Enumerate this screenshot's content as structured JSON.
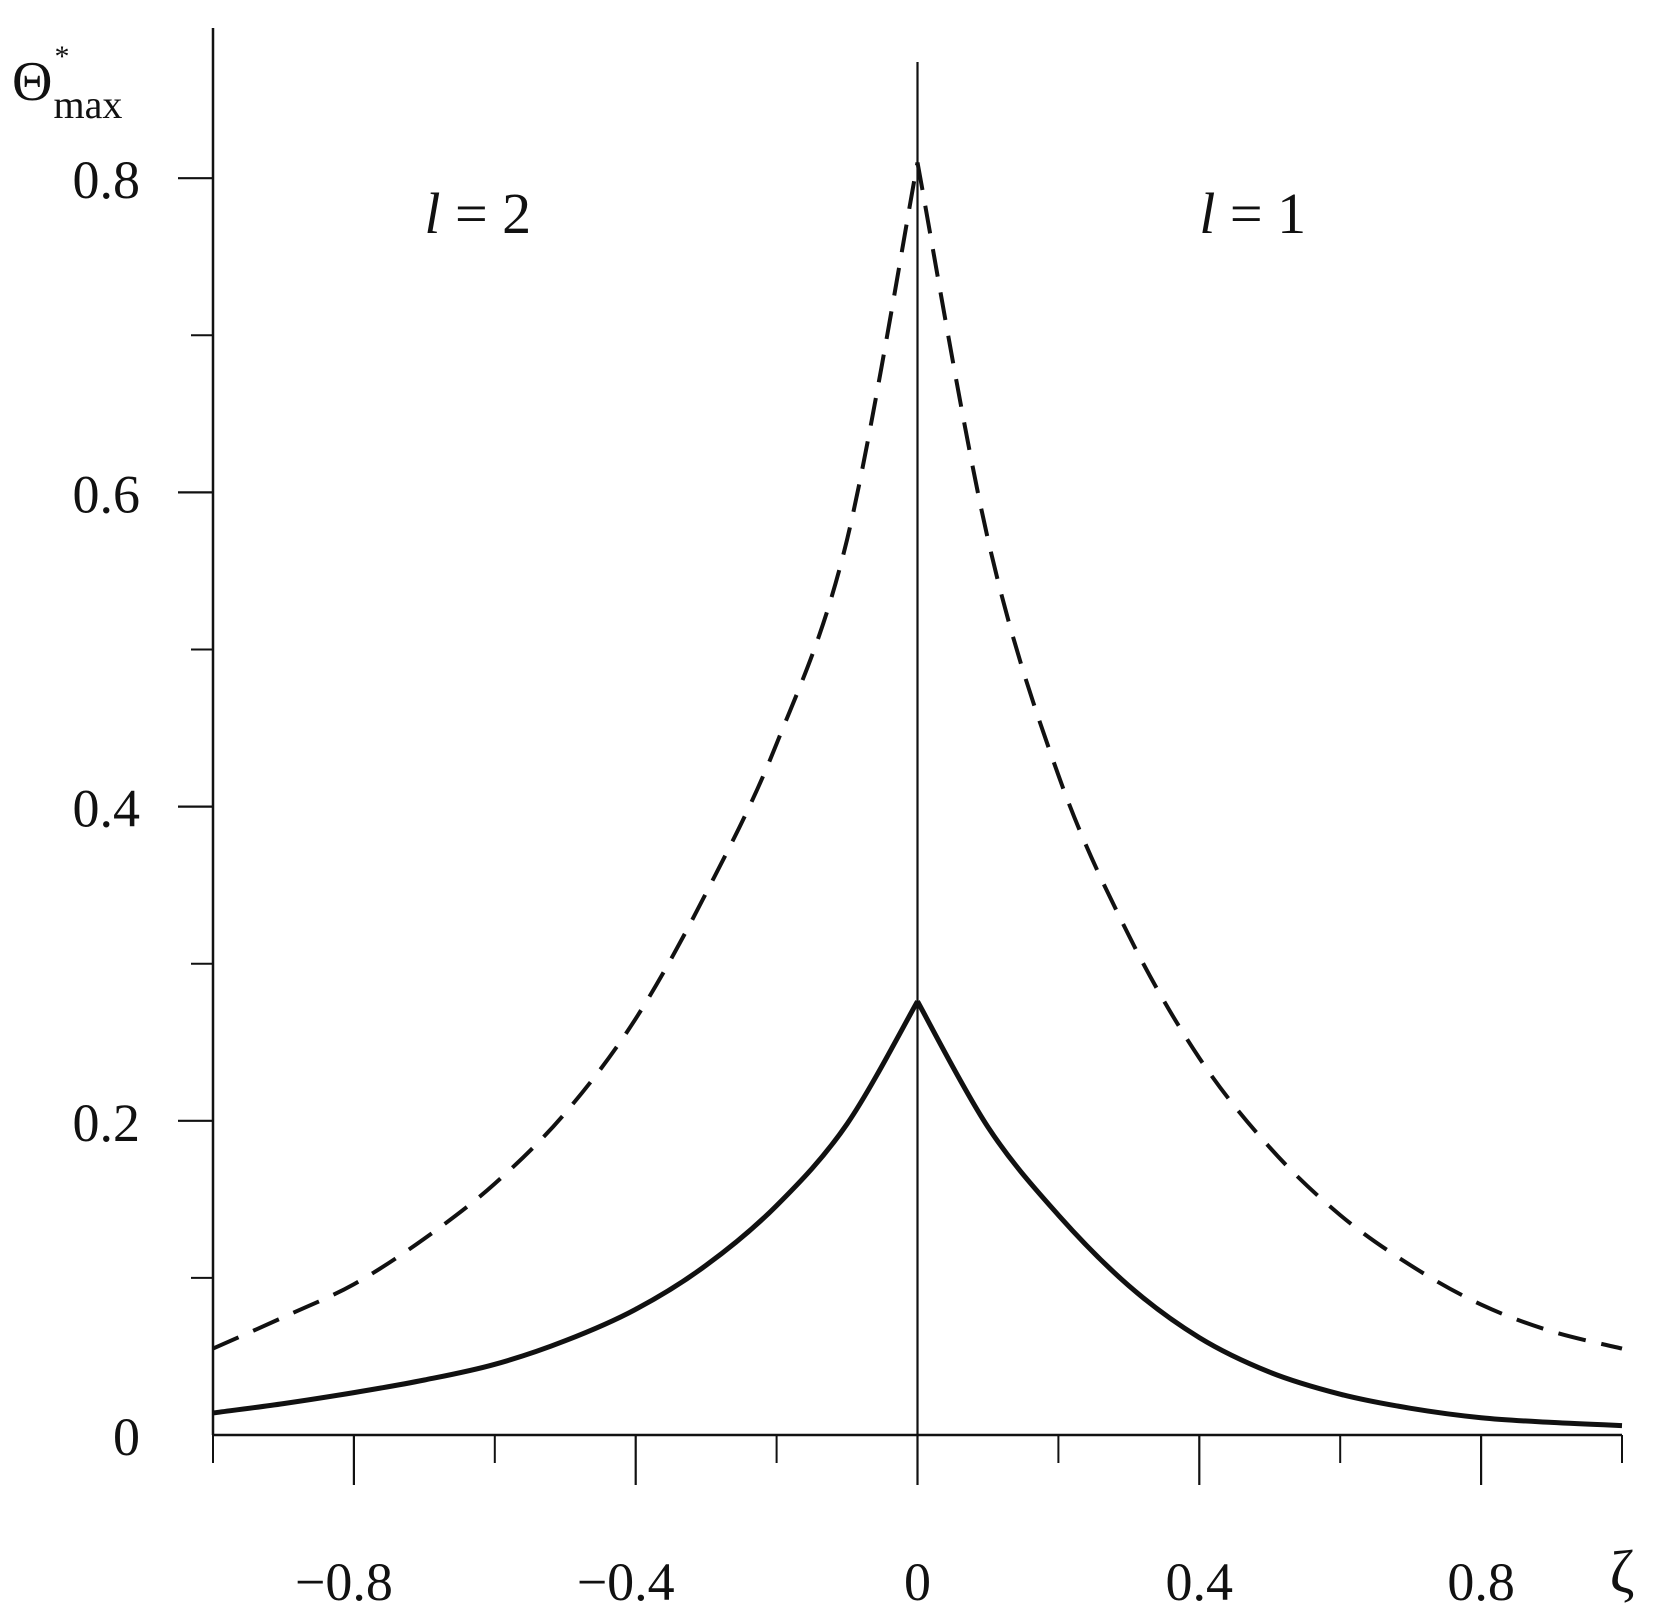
{
  "chart_data": {
    "type": "line",
    "title": "",
    "ylabel": {
      "symbol": "Θ",
      "sup": "*",
      "sub": "max"
    },
    "xlabel": "ζ",
    "xlim": [
      -1.0,
      1.0
    ],
    "ylim": [
      0,
      0.9
    ],
    "x_ticks": [
      {
        "value": -0.8,
        "label": "−0.8"
      },
      {
        "value": -0.4,
        "label": "−0.4"
      },
      {
        "value": 0,
        "label": "0"
      },
      {
        "value": 0.4,
        "label": "0.4"
      },
      {
        "value": 0.8,
        "label": "0.8"
      }
    ],
    "x_minor_ticks": [
      -1.0,
      -0.6,
      -0.2,
      0.2,
      0.6,
      1.0
    ],
    "y_ticks": [
      {
        "value": 0,
        "label": "0"
      },
      {
        "value": 0.2,
        "label": "0.2"
      },
      {
        "value": 0.4,
        "label": "0.4"
      },
      {
        "value": 0.6,
        "label": "0.6"
      },
      {
        "value": 0.8,
        "label": "0.8"
      }
    ],
    "y_minor_ticks": [
      0.1,
      0.3,
      0.5,
      0.7
    ],
    "annotations": [
      {
        "var": "l",
        "text": " = 2",
        "x": -0.7,
        "y": 0.765
      },
      {
        "var": "l",
        "text": " = 1",
        "x": 0.4,
        "y": 0.765
      }
    ],
    "series": [
      {
        "style": "dashed",
        "x": [
          -1.0,
          -0.9,
          -0.8,
          -0.7,
          -0.6,
          -0.5,
          -0.4,
          -0.3,
          -0.2,
          -0.1,
          0.0,
          0.1,
          0.2,
          0.3,
          0.4,
          0.5,
          0.6,
          0.7,
          0.8,
          0.9,
          1.0
        ],
        "y": [
          0.055,
          0.075,
          0.096,
          0.125,
          0.16,
          0.205,
          0.265,
          0.345,
          0.44,
          0.57,
          0.81,
          0.57,
          0.42,
          0.318,
          0.24,
          0.183,
          0.14,
          0.108,
          0.083,
          0.066,
          0.055
        ]
      },
      {
        "style": "solid",
        "x": [
          -1.0,
          -0.9,
          -0.8,
          -0.7,
          -0.6,
          -0.5,
          -0.4,
          -0.3,
          -0.2,
          -0.1,
          0.0,
          0.1,
          0.2,
          0.3,
          0.4,
          0.5,
          0.6,
          0.7,
          0.8,
          0.9,
          1.0
        ],
        "y": [
          0.014,
          0.02,
          0.027,
          0.035,
          0.045,
          0.06,
          0.08,
          0.108,
          0.146,
          0.198,
          0.276,
          0.196,
          0.14,
          0.095,
          0.062,
          0.04,
          0.026,
          0.017,
          0.011,
          0.008,
          0.006
        ]
      }
    ]
  }
}
